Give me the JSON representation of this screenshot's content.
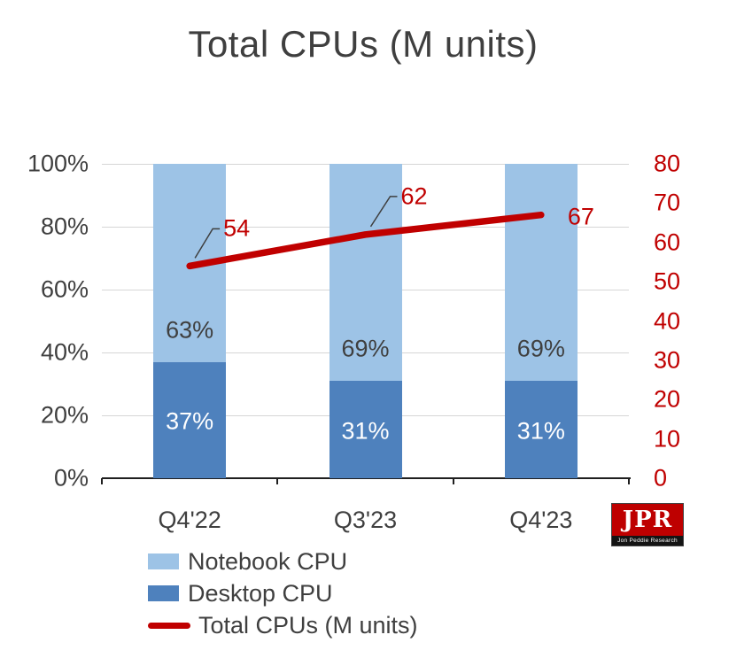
{
  "title": "Total CPUs (M units)",
  "logo": {
    "text": "JPR",
    "subtext": "Jon Peddie Research"
  },
  "chart_data": {
    "type": "bar",
    "subtype": "100%-stacked-columns-with-line",
    "title": "Total CPUs (M units)",
    "categories": [
      "Q4'22",
      "Q3'23",
      "Q4'23"
    ],
    "series": [
      {
        "name": "Notebook CPU",
        "chart_type": "bar",
        "axis": "left",
        "unit": "%",
        "values": [
          63,
          69,
          69
        ],
        "color": "#9DC3E6"
      },
      {
        "name": "Desktop CPU",
        "chart_type": "bar",
        "axis": "left",
        "unit": "%",
        "values": [
          37,
          31,
          31
        ],
        "color": "#4E81BD"
      },
      {
        "name": "Total CPUs (M units)",
        "chart_type": "line",
        "axis": "right",
        "unit": "M units",
        "values": [
          54,
          62,
          67
        ],
        "color": "#C00000"
      }
    ],
    "bar_labels": [
      [
        "63%",
        "69%",
        "69%"
      ],
      [
        "37%",
        "31%",
        "31%"
      ]
    ],
    "line_labels": [
      "54",
      "62",
      "67"
    ],
    "left_axis": {
      "min": 0,
      "max": 100,
      "ticks": [
        "100%",
        "80%",
        "60%",
        "40%",
        "20%",
        "0%"
      ]
    },
    "right_axis": {
      "min": 0,
      "max": 80,
      "ticks": [
        "80",
        "70",
        "60",
        "50",
        "40",
        "30",
        "20",
        "10",
        "0"
      ],
      "color": "#C00000"
    },
    "legend_position": "bottom-left",
    "grid": true
  }
}
